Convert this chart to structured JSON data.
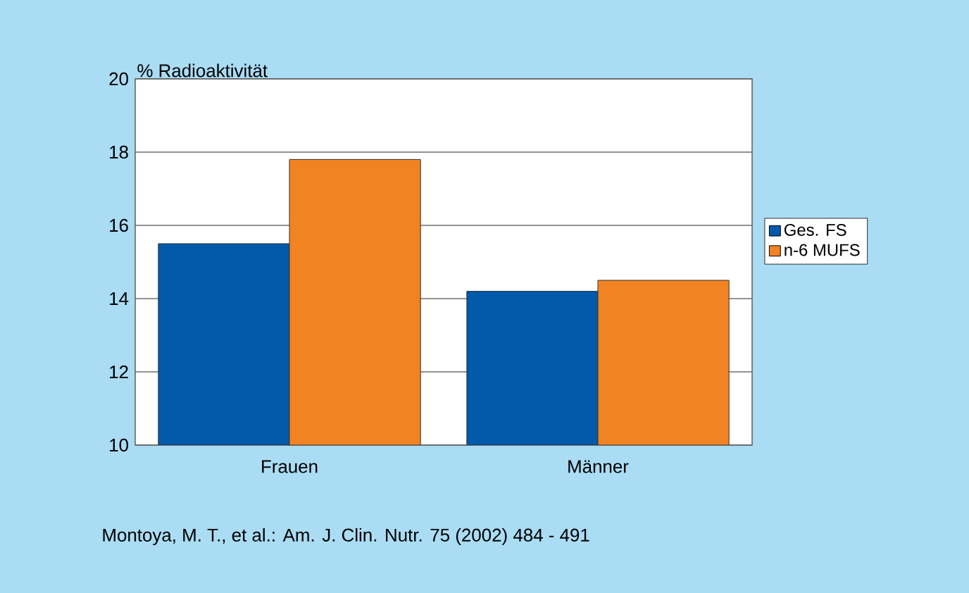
{
  "chart_data": {
    "type": "bar",
    "ylabel": "% Radioaktivität",
    "categories": [
      "Frauen",
      "Männer"
    ],
    "series": [
      {
        "name": "Ges. FS",
        "color": "#005aa9",
        "values": [
          15.5,
          14.2
        ]
      },
      {
        "name": "n-6 MUFS",
        "color": "#f28322",
        "values": [
          17.8,
          14.5
        ]
      }
    ],
    "ylim": [
      10,
      20
    ],
    "yticks": [
      10,
      12,
      14,
      16,
      18,
      20
    ],
    "grid": "y",
    "legend": "right",
    "annotations": [
      "Montoya, M. T., et al.: Am. J. Clin. Nutr. 75 (2002) 484 - 491"
    ]
  }
}
